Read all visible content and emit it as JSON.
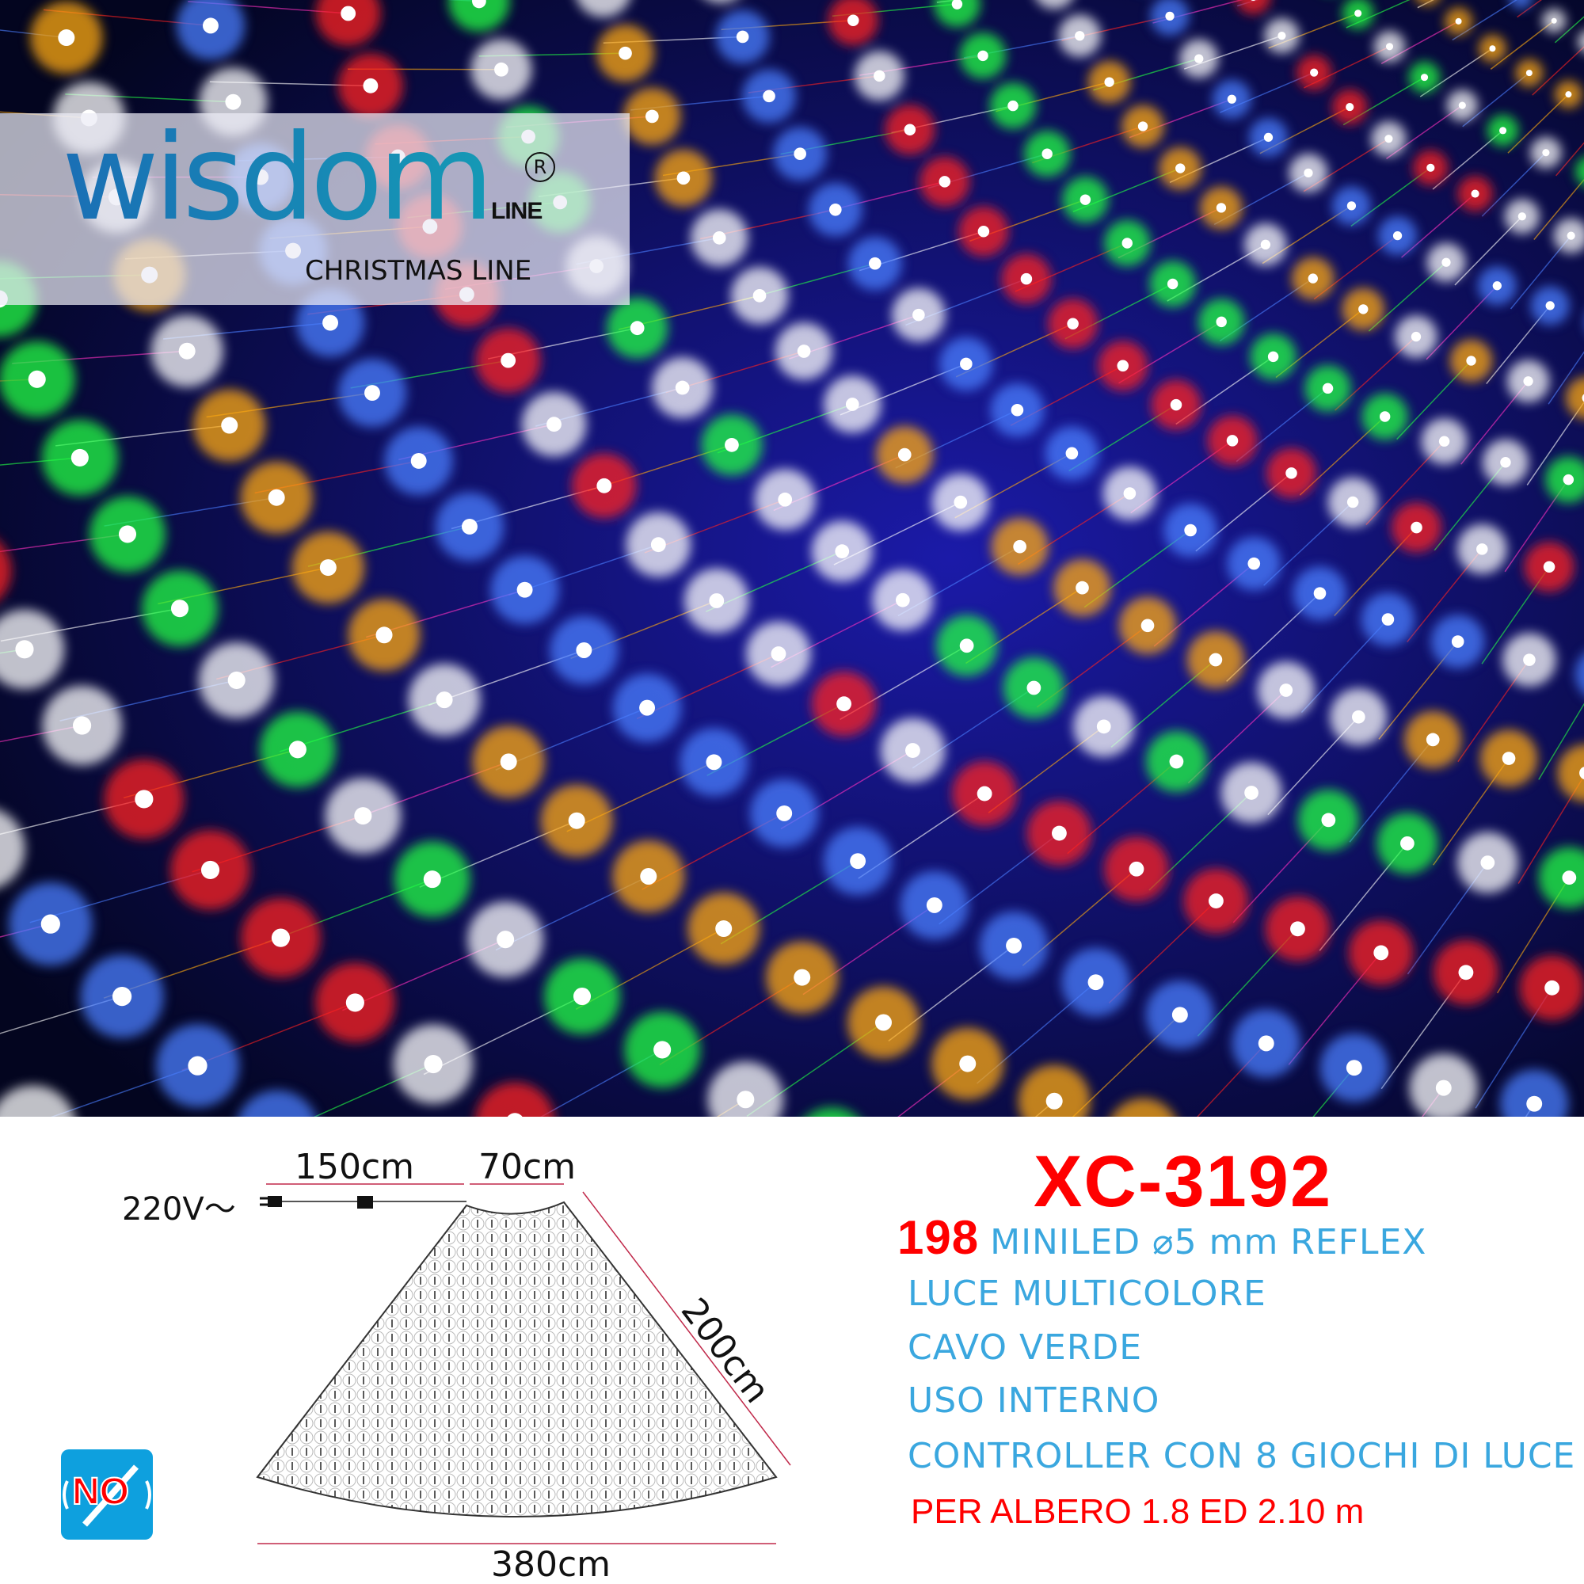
{
  "brand": {
    "name": "wisdom",
    "sub": "LINE",
    "registered": "R",
    "tagline": "CHRISTMAS LINE"
  },
  "diagram": {
    "voltage": "220V～",
    "cable_length": "150cm",
    "top_width": "70cm",
    "side_length": "200cm",
    "bottom_width": "380cm"
  },
  "product": {
    "model": "XC-3192",
    "led_count": "198",
    "specs": [
      "MINILED ⌀5 mm REFLEX",
      "LUCE  MULTICOLORE",
      "CAVO VERDE",
      "USO INTERNO",
      "CONTROLLER CON 8 GIOCHI DI LUCE",
      "PER ALBERO 1.8 ED 2.10 m"
    ]
  },
  "badge": {
    "text": "NO",
    "icon": "no-connectable-icon"
  },
  "colors": {
    "model": "#ff0000",
    "spec": "#3aa7df",
    "badge": "#0ea0de",
    "brand": "#1a7bb8",
    "photo_bg": "#060a3a"
  },
  "photo": {
    "subject": "multicolor LED net lights",
    "light_colors": [
      "#22ff44",
      "#ff2020",
      "#ffaa10",
      "#4a7dff",
      "#ffffff",
      "#ff30c0"
    ]
  }
}
